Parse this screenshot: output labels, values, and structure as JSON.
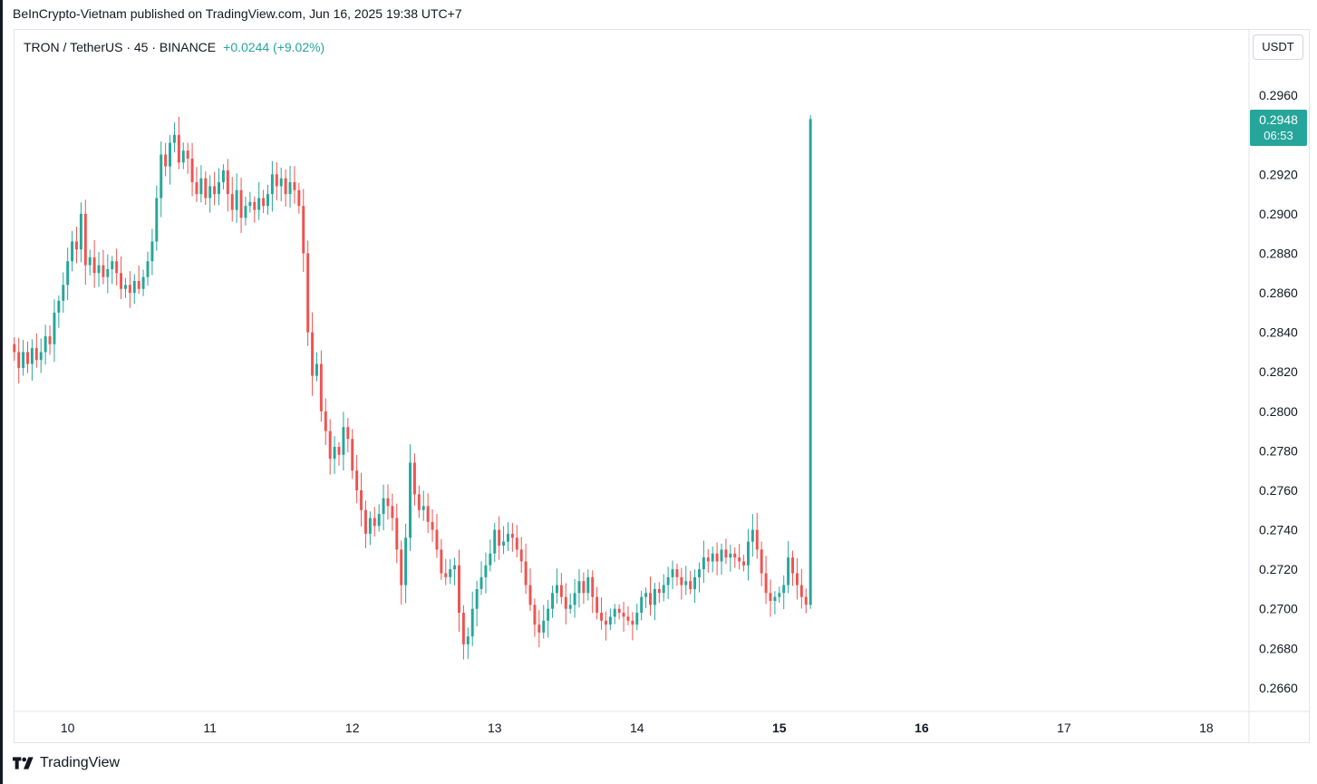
{
  "header": {
    "published_line": "BeInCrypto-Vietnam published on TradingView.com, Jun 16, 2025 19:38 UTC+7"
  },
  "symbol": {
    "title": "TRON / TetherUS · 45 · BINANCE",
    "change": "+0.0244 (+9.02%)"
  },
  "toolbar": {
    "currency_label": "USDT"
  },
  "last_price": {
    "value": "0.2948",
    "countdown": "06:53"
  },
  "footer": {
    "brand": "TradingView"
  },
  "colors": {
    "up": "#26a69a",
    "down": "#ef5350",
    "text": "#131722",
    "border": "#e0e3eb"
  },
  "chart_data": {
    "type": "candlestick",
    "symbol": "TRXUSDT",
    "interval": "45",
    "ylim": [
      0.2648,
      0.2978
    ],
    "xlim": [
      9.62,
      18.3
    ],
    "y_ticks": [
      "0.2960",
      "0.2920",
      "0.2900",
      "0.2880",
      "0.2860",
      "0.2840",
      "0.2820",
      "0.2800",
      "0.2780",
      "0.2760",
      "0.2740",
      "0.2720",
      "0.2700",
      "0.2680",
      "0.2660"
    ],
    "x_ticks": [
      {
        "label": "10",
        "value": 10,
        "bold": false
      },
      {
        "label": "11",
        "value": 11,
        "bold": false
      },
      {
        "label": "12",
        "value": 12,
        "bold": false
      },
      {
        "label": "13",
        "value": 13,
        "bold": false
      },
      {
        "label": "14",
        "value": 14,
        "bold": false
      },
      {
        "label": "15",
        "value": 15,
        "bold": true
      },
      {
        "label": "16",
        "value": 16,
        "bold": true
      },
      {
        "label": "17",
        "value": 17,
        "bold": false
      },
      {
        "label": "18",
        "value": 18,
        "bold": false
      }
    ],
    "last_price": 0.2948,
    "candle_step_days": 0.03125,
    "start_day": 9.625,
    "closes": [
      0.283,
      0.2822,
      0.283,
      0.2824,
      0.2832,
      0.2826,
      0.283,
      0.2838,
      0.2834,
      0.285,
      0.2856,
      0.2864,
      0.2876,
      0.2886,
      0.2882,
      0.29,
      0.2874,
      0.2878,
      0.287,
      0.2874,
      0.2868,
      0.2872,
      0.2876,
      0.287,
      0.2862,
      0.2864,
      0.286,
      0.2866,
      0.2862,
      0.2868,
      0.2876,
      0.2886,
      0.2908,
      0.293,
      0.2924,
      0.2936,
      0.294,
      0.2926,
      0.2932,
      0.2928,
      0.2916,
      0.291,
      0.2918,
      0.2908,
      0.2914,
      0.291,
      0.2916,
      0.2922,
      0.291,
      0.2902,
      0.2912,
      0.2898,
      0.2904,
      0.2906,
      0.2902,
      0.2908,
      0.2904,
      0.291,
      0.292,
      0.2914,
      0.2918,
      0.291,
      0.2916,
      0.2912,
      0.2904,
      0.288,
      0.284,
      0.2818,
      0.2824,
      0.28,
      0.279,
      0.2776,
      0.2782,
      0.2778,
      0.2792,
      0.2786,
      0.277,
      0.276,
      0.275,
      0.2738,
      0.2746,
      0.2742,
      0.2748,
      0.2756,
      0.2752,
      0.2746,
      0.273,
      0.2712,
      0.2736,
      0.2774,
      0.2758,
      0.275,
      0.2752,
      0.2744,
      0.274,
      0.273,
      0.2718,
      0.2716,
      0.272,
      0.2722,
      0.2698,
      0.2682,
      0.2686,
      0.27,
      0.271,
      0.2716,
      0.2722,
      0.2728,
      0.274,
      0.2732,
      0.2734,
      0.2738,
      0.2736,
      0.273,
      0.2724,
      0.2712,
      0.2702,
      0.2692,
      0.2688,
      0.2694,
      0.27,
      0.2708,
      0.2712,
      0.2706,
      0.27,
      0.2702,
      0.2708,
      0.2714,
      0.2708,
      0.2716,
      0.2706,
      0.2698,
      0.2694,
      0.2692,
      0.2696,
      0.27,
      0.2698,
      0.2696,
      0.2694,
      0.2692,
      0.2698,
      0.2706,
      0.2708,
      0.2702,
      0.271,
      0.2708,
      0.2712,
      0.2716,
      0.272,
      0.2716,
      0.2712,
      0.2714,
      0.271,
      0.2716,
      0.272,
      0.2726,
      0.2724,
      0.2728,
      0.2724,
      0.273,
      0.2726,
      0.2728,
      0.2726,
      0.2724,
      0.2722,
      0.2734,
      0.274,
      0.273,
      0.2718,
      0.2708,
      0.2704,
      0.2706,
      0.2708,
      0.2712,
      0.2726,
      0.2718,
      0.2712,
      0.2706,
      0.2702
    ],
    "last_candle": {
      "open": 0.2702,
      "close": 0.2948,
      "high": 0.295,
      "low": 0.27
    }
  }
}
